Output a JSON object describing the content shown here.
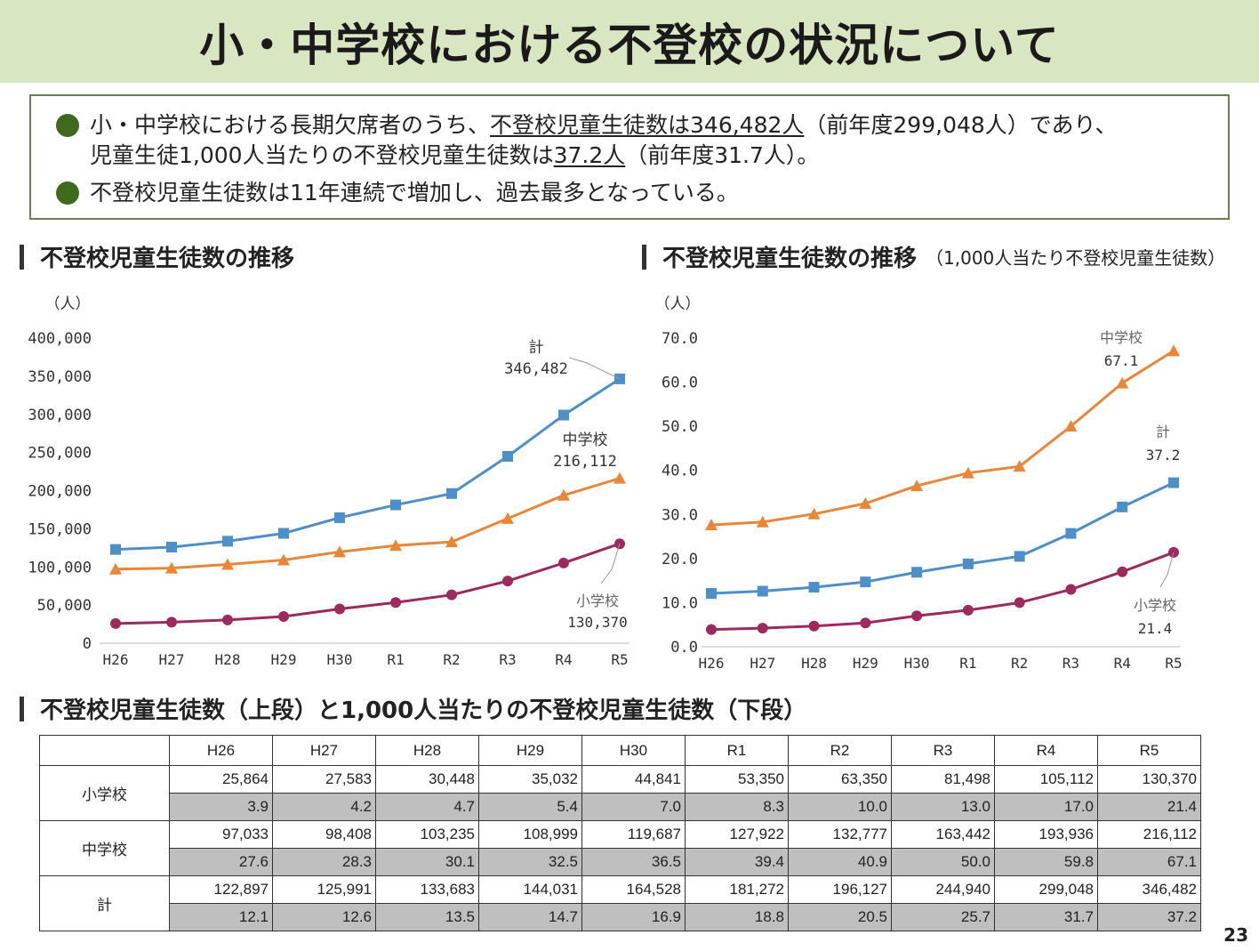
{
  "title": "小・中学校における不登校の状況について",
  "summary": {
    "line1_pre": "小・中学校における長期欠席者のうち、",
    "line1_u": "不登校児童生徒数は346,482人",
    "line1_post": "（前年度299,048人）であり、",
    "line2_pre": "児童生徒1,000人当たりの不登校児童生徒数は",
    "line2_u": "37.2人",
    "line2_post": "（前年度31.7人）。",
    "bullet2": "不登校児童生徒数は11年連続で増加し、過去最多となっている。"
  },
  "section_left": "不登校児童生徒数の推移",
  "section_right": "不登校児童生徒数の推移",
  "section_right_sub": "（1,000人当たり不登校児童生徒数）",
  "section_table": "不登校児童生徒数（上段）と1,000人当たりの不登校児童生徒数（下段）",
  "page_number": "23",
  "chart_data": [
    {
      "type": "line",
      "unit_label": "（人）",
      "categories": [
        "H26",
        "H27",
        "H28",
        "H29",
        "H30",
        "R1",
        "R2",
        "R3",
        "R4",
        "R5"
      ],
      "ylim": [
        0,
        400000
      ],
      "yticks": [
        0,
        50000,
        100000,
        150000,
        200000,
        250000,
        300000,
        350000,
        400000
      ],
      "ytick_labels": [
        "0",
        "50,000",
        "100,000",
        "150,000",
        "200,000",
        "250,000",
        "300,000",
        "350,000",
        "400,000"
      ],
      "series": [
        {
          "name": "計",
          "color": "#4f8fc8",
          "marker": "square",
          "values": [
            122897,
            125991,
            133683,
            144031,
            164528,
            181272,
            196127,
            244940,
            299048,
            346482
          ],
          "callout_value": "346,482"
        },
        {
          "name": "中学校",
          "color": "#e8873a",
          "marker": "triangle",
          "values": [
            97033,
            98408,
            103235,
            108999,
            119687,
            127922,
            132777,
            163442,
            193936,
            216112
          ],
          "callout_value": "216,112"
        },
        {
          "name": "小学校",
          "color": "#9c2a5c",
          "marker": "circle",
          "values": [
            25864,
            27583,
            30448,
            35032,
            44841,
            53350,
            63350,
            81498,
            105112,
            130370
          ],
          "callout_value": "130,370"
        }
      ]
    },
    {
      "type": "line",
      "unit_label": "（人）",
      "categories": [
        "H26",
        "H27",
        "H28",
        "H29",
        "H30",
        "R1",
        "R2",
        "R3",
        "R4",
        "R5"
      ],
      "ylim": [
        0,
        70
      ],
      "yticks": [
        0,
        10,
        20,
        30,
        40,
        50,
        60,
        70
      ],
      "ytick_labels": [
        "0.0",
        "10.0",
        "20.0",
        "30.0",
        "40.0",
        "50.0",
        "60.0",
        "70.0"
      ],
      "series": [
        {
          "name": "中学校",
          "color": "#e8873a",
          "marker": "triangle",
          "values": [
            27.6,
            28.3,
            30.1,
            32.5,
            36.5,
            39.4,
            40.9,
            50.0,
            59.8,
            67.1
          ],
          "callout_value": "67.1"
        },
        {
          "name": "計",
          "color": "#4f8fc8",
          "marker": "square",
          "values": [
            12.1,
            12.6,
            13.5,
            14.7,
            16.9,
            18.8,
            20.5,
            25.7,
            31.7,
            37.2
          ],
          "callout_value": "37.2"
        },
        {
          "name": "小学校",
          "color": "#9c2a5c",
          "marker": "circle",
          "values": [
            3.9,
            4.2,
            4.7,
            5.4,
            7.0,
            8.3,
            10.0,
            13.0,
            17.0,
            21.4
          ],
          "callout_value": "21.4"
        }
      ]
    },
    {
      "type": "table",
      "columns": [
        "H26",
        "H27",
        "H28",
        "H29",
        "H30",
        "R1",
        "R2",
        "R3",
        "R4",
        "R5"
      ],
      "rows": [
        {
          "label": "小学校",
          "counts": [
            "25,864",
            "27,583",
            "30,448",
            "35,032",
            "44,841",
            "53,350",
            "63,350",
            "81,498",
            "105,112",
            "130,370"
          ],
          "per1000": [
            "3.9",
            "4.2",
            "4.7",
            "5.4",
            "7.0",
            "8.3",
            "10.0",
            "13.0",
            "17.0",
            "21.4"
          ]
        },
        {
          "label": "中学校",
          "counts": [
            "97,033",
            "98,408",
            "103,235",
            "108,999",
            "119,687",
            "127,922",
            "132,777",
            "163,442",
            "193,936",
            "216,112"
          ],
          "per1000": [
            "27.6",
            "28.3",
            "30.1",
            "32.5",
            "36.5",
            "39.4",
            "40.9",
            "50.0",
            "59.8",
            "67.1"
          ]
        },
        {
          "label": "計",
          "counts": [
            "122,897",
            "125,991",
            "133,683",
            "144,031",
            "164,528",
            "181,272",
            "196,127",
            "244,940",
            "299,048",
            "346,482"
          ],
          "per1000": [
            "12.1",
            "12.6",
            "13.5",
            "14.7",
            "16.9",
            "18.8",
            "20.5",
            "25.7",
            "31.7",
            "37.2"
          ]
        }
      ]
    }
  ]
}
